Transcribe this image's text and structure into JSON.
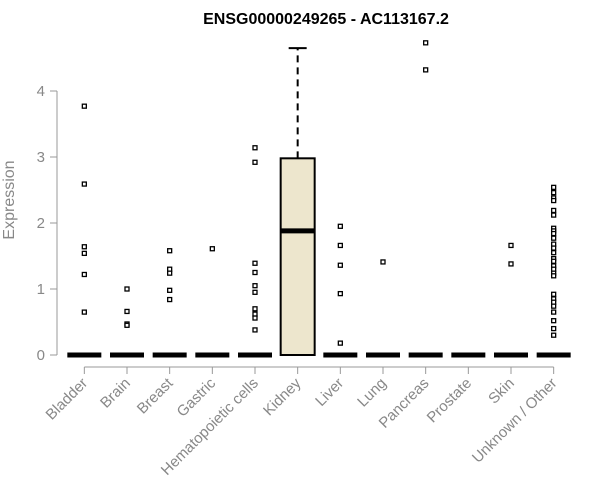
{
  "chart_data": {
    "type": "box",
    "title": "ENSG00000249265 - AC113167.2",
    "ylabel": "Expression",
    "xlabel": "",
    "ylim": [
      0,
      4.8
    ],
    "yticks": [
      0,
      1,
      2,
      3,
      4
    ],
    "grid": false,
    "box_fill": "#ede6cd",
    "categories": [
      "Bladder",
      "Brain",
      "Breast",
      "Gastric",
      "Hematopoietic cells",
      "Kidney",
      "Liver",
      "Lung",
      "Pancreas",
      "Prostate",
      "Skin",
      "Unknown / Other"
    ],
    "boxes": [
      {
        "category": "Bladder",
        "q1": 0,
        "median": 0,
        "q3": 0,
        "whisker_low": 0,
        "whisker_high": 0,
        "outliers": [
          3.77,
          2.59,
          1.64,
          1.54,
          1.22,
          0.65
        ]
      },
      {
        "category": "Brain",
        "q1": 0,
        "median": 0,
        "q3": 0,
        "whisker_low": 0,
        "whisker_high": 0,
        "outliers": [
          1.0,
          0.66,
          0.47,
          0.45
        ]
      },
      {
        "category": "Breast",
        "q1": 0,
        "median": 0,
        "q3": 0,
        "whisker_low": 0,
        "whisker_high": 0,
        "outliers": [
          1.58,
          1.3,
          1.24,
          0.98,
          0.84
        ]
      },
      {
        "category": "Gastric",
        "q1": 0,
        "median": 0,
        "q3": 0,
        "whisker_low": 0,
        "whisker_high": 0,
        "outliers": [
          1.61
        ]
      },
      {
        "category": "Hematopoietic cells",
        "q1": 0,
        "median": 0,
        "q3": 0,
        "whisker_low": 0,
        "whisker_high": 0,
        "outliers": [
          3.14,
          2.92,
          1.39,
          1.25,
          1.05,
          0.95,
          0.7,
          0.62,
          0.56,
          0.38
        ]
      },
      {
        "category": "Kidney",
        "q1": 0,
        "median": 1.88,
        "q3": 2.98,
        "whisker_low": 0,
        "whisker_high": 4.65,
        "outliers": []
      },
      {
        "category": "Liver",
        "q1": 0,
        "median": 0,
        "q3": 0,
        "whisker_low": 0,
        "whisker_high": 0,
        "outliers": [
          1.95,
          1.66,
          1.36,
          0.93,
          0.18
        ]
      },
      {
        "category": "Lung",
        "q1": 0,
        "median": 0,
        "q3": 0,
        "whisker_low": 0,
        "whisker_high": 0,
        "outliers": [
          1.41
        ]
      },
      {
        "category": "Pancreas",
        "q1": 0,
        "median": 0,
        "q3": 0,
        "whisker_low": 0,
        "whisker_high": 0,
        "outliers": [
          4.73,
          4.32
        ]
      },
      {
        "category": "Prostate",
        "q1": 0,
        "median": 0,
        "q3": 0,
        "whisker_low": 0,
        "whisker_high": 0,
        "outliers": []
      },
      {
        "category": "Skin",
        "q1": 0,
        "median": 0,
        "q3": 0,
        "whisker_low": 0,
        "whisker_high": 0,
        "outliers": [
          1.66,
          1.38
        ]
      },
      {
        "category": "Unknown / Other",
        "q1": 0,
        "median": 0,
        "q3": 0,
        "whisker_low": 0,
        "whisker_high": 0,
        "outliers": [
          2.54,
          2.46,
          2.38,
          2.34,
          2.19,
          2.12,
          1.92,
          1.88,
          1.84,
          1.77,
          1.68,
          1.62,
          1.55,
          1.46,
          1.42,
          1.35,
          1.3,
          1.24,
          1.2,
          0.92,
          0.85,
          0.8,
          0.74,
          0.65,
          0.52,
          0.4,
          0.3
        ]
      }
    ]
  }
}
